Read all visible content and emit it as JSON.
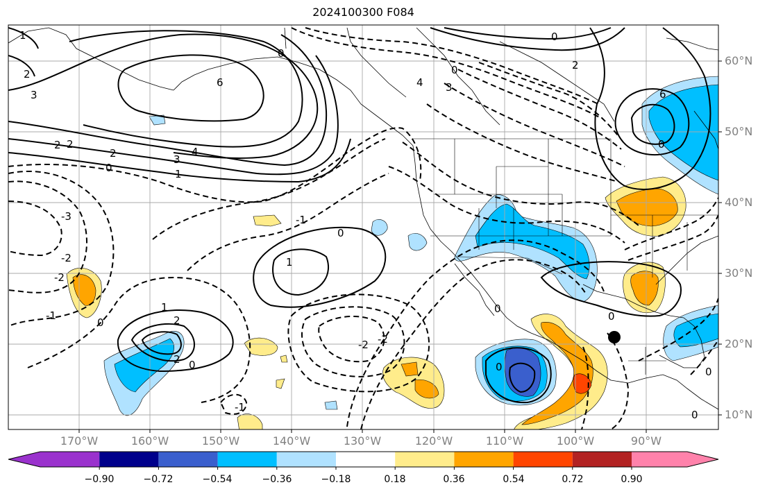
{
  "title": "2024100300 F084",
  "lat_labels": [
    "60°N",
    "50°N",
    "40°N",
    "30°N",
    "20°N",
    "10°N"
  ],
  "lon_labels": [
    "170°W",
    "160°W",
    "150°W",
    "140°W",
    "130°W",
    "120°W",
    "110°W",
    "100°W",
    "90°W"
  ],
  "colorbar": {
    "colors": [
      "#9a32cd",
      "#00008b",
      "#3a5fcd",
      "#00bfff",
      "#b0e2ff",
      "#ffffff",
      "#ffec8b",
      "#ffa500",
      "#ff4500",
      "#b22222",
      "#ff82ab"
    ],
    "tick_labels": [
      "−0.90",
      "−0.72",
      "−0.54",
      "−0.36",
      "−0.18",
      "0.18",
      "0.36",
      "0.54",
      "0.72",
      "0.90"
    ]
  },
  "contour_labels": [
    "1",
    "2",
    "3",
    "2",
    "6",
    "2",
    "2",
    "3",
    "4",
    "1",
    "0",
    "-3",
    "-2",
    "-2",
    "-1",
    "0",
    "1",
    "2",
    "2",
    "0",
    "1",
    "0",
    "-1",
    "0",
    "-2",
    "-2",
    "0",
    "-1",
    "4",
    "3",
    "0",
    "2",
    "0",
    "6",
    "0",
    "0",
    "0",
    "0",
    "0"
  ],
  "marker": "storm-center-dot"
}
